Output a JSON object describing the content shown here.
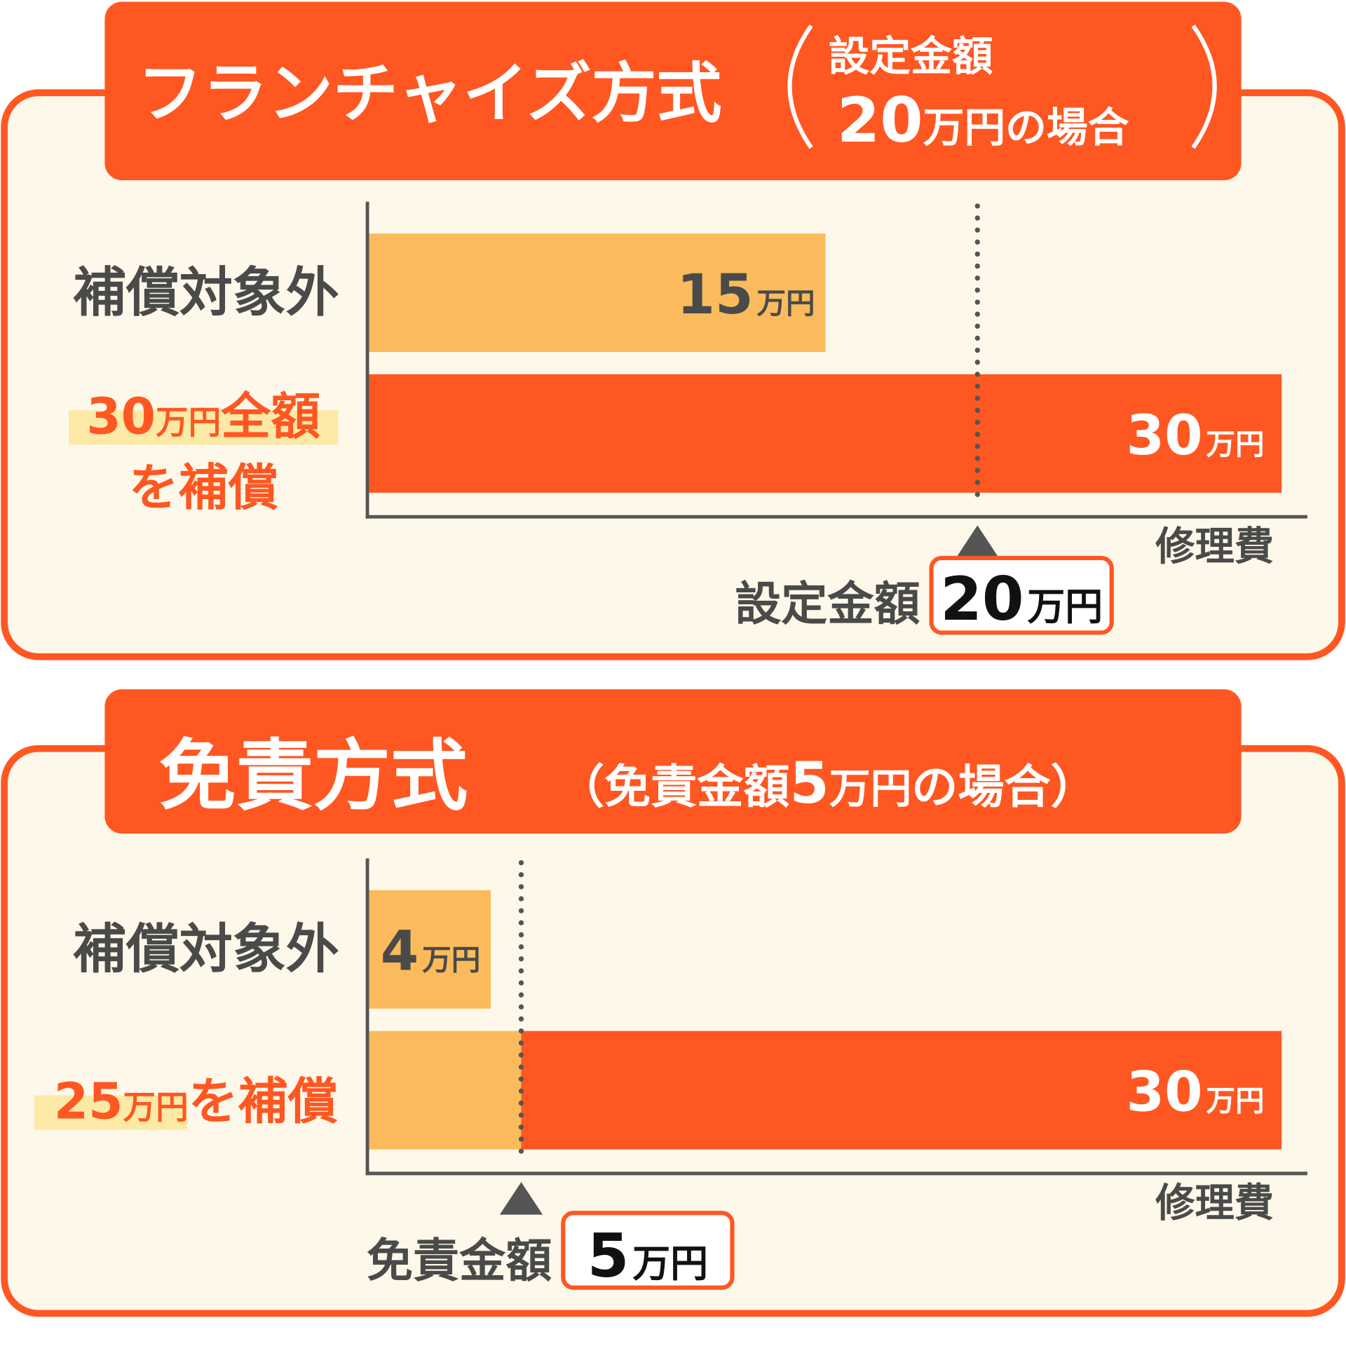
{
  "panels": [
    {
      "title": "フランチャイズ方式",
      "note": [
        [
          "設定金額"
        ],
        [
          "20",
          "万円",
          "の場合"
        ]
      ],
      "rows": [
        {
          "label": [
            [
              "補償対象外"
            ]
          ],
          "value": 15,
          "unit": "万円"
        },
        {
          "label": [
            [
              "30",
              "万円",
              "全額"
            ],
            [
              "を補償"
            ]
          ],
          "value": 30,
          "unit": "万円"
        }
      ],
      "threshold": {
        "label": "設定金額",
        "value": 20,
        "unit": "万円"
      },
      "axis_label": "修理費"
    },
    {
      "title": "免責方式",
      "note": [
        [
          "（免責金額",
          "5",
          "万円",
          "の場合）"
        ]
      ],
      "rows": [
        {
          "label": [
            [
              "補償対象外"
            ]
          ],
          "value": 4,
          "unit": "万円"
        },
        {
          "label": [
            [
              "25",
              "万円",
              "を補償"
            ]
          ],
          "value": 30,
          "unit": "万円"
        }
      ],
      "threshold": {
        "label": "免責金額",
        "value": 5,
        "unit": "万円"
      },
      "axis_label": "修理費"
    }
  ]
}
